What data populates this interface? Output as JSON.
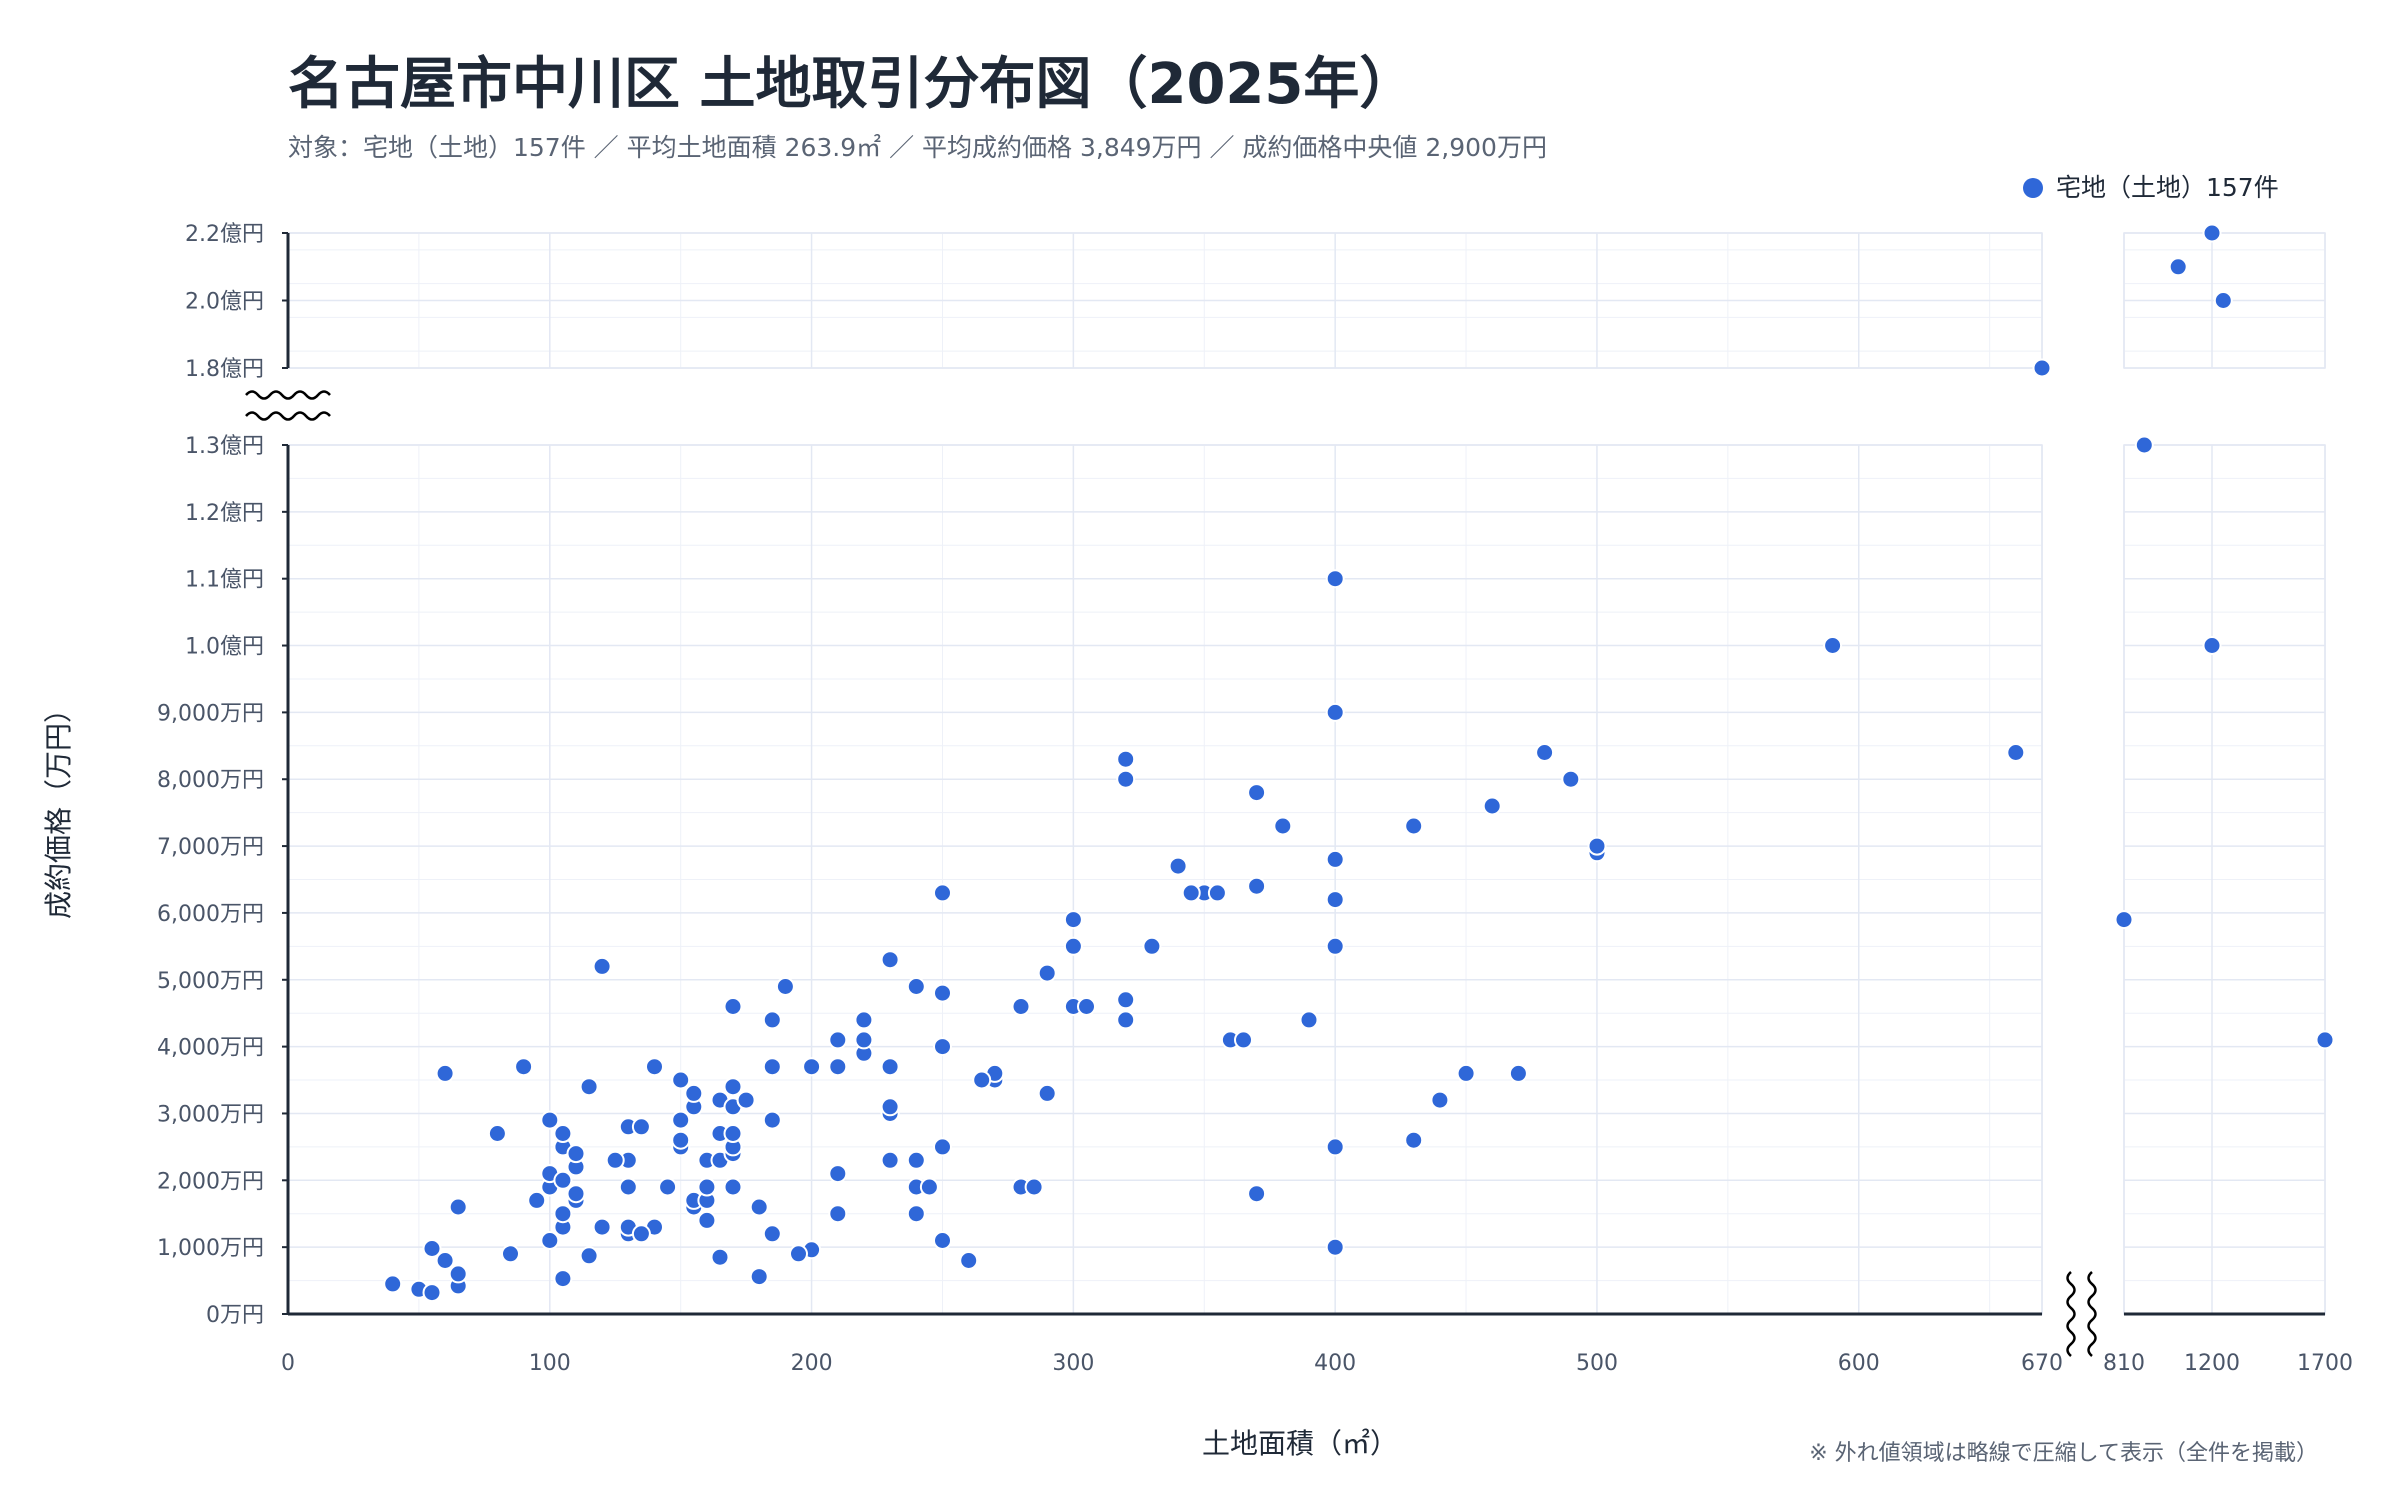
{
  "chart_data": {
    "type": "scatter",
    "title": "名古屋市中川区 土地取引分布図（2025年）",
    "subtitle": "対象：宅地（土地）157件 ／ 平均土地面積 263.9㎡ ／ 平均成約価格 3,849万円 ／ 成約価格中央値 2,900万円",
    "xlabel": "土地面積（㎡）",
    "ylabel": "成約価格（万円）",
    "note": "※ 外れ値領域は略線で圧縮して表示（全件を掲載）",
    "legend_position": "top-right",
    "grid": true,
    "x_axis_break": {
      "main_range": [
        0,
        670
      ],
      "outlier_range": [
        810,
        1700
      ]
    },
    "y_axis_break": {
      "main_range": [
        0,
        13000
      ],
      "outlier_range": [
        18000,
        22000
      ]
    },
    "x_ticks_main": [
      {
        "v": 0,
        "label": "0"
      },
      {
        "v": 100,
        "label": "100"
      },
      {
        "v": 200,
        "label": "200"
      },
      {
        "v": 300,
        "label": "300"
      },
      {
        "v": 400,
        "label": "400"
      },
      {
        "v": 500,
        "label": "500"
      },
      {
        "v": 600,
        "label": "600"
      },
      {
        "v": 670,
        "label": "670"
      }
    ],
    "x_ticks_outlier": [
      {
        "v": 810,
        "label": "810"
      },
      {
        "v": 1200,
        "label": "1200"
      },
      {
        "v": 1700,
        "label": "1700"
      }
    ],
    "y_ticks_main": [
      {
        "v": 0,
        "label": "0万円"
      },
      {
        "v": 1000,
        "label": "1,000万円"
      },
      {
        "v": 2000,
        "label": "2,000万円"
      },
      {
        "v": 3000,
        "label": "3,000万円"
      },
      {
        "v": 4000,
        "label": "4,000万円"
      },
      {
        "v": 5000,
        "label": "5,000万円"
      },
      {
        "v": 6000,
        "label": "6,000万円"
      },
      {
        "v": 7000,
        "label": "7,000万円"
      },
      {
        "v": 8000,
        "label": "8,000万円"
      },
      {
        "v": 9000,
        "label": "9,000万円"
      },
      {
        "v": 10000,
        "label": "1.0億円"
      },
      {
        "v": 11000,
        "label": "1.1億円"
      },
      {
        "v": 12000,
        "label": "1.2億円"
      },
      {
        "v": 13000,
        "label": "1.3億円"
      }
    ],
    "y_ticks_outlier": [
      {
        "v": 18000,
        "label": "1.8億円"
      },
      {
        "v": 20000,
        "label": "2.0億円"
      },
      {
        "v": 22000,
        "label": "2.2億円"
      }
    ],
    "series": [
      {
        "name": "宅地（土地）157件",
        "color": "#2f67d8",
        "points": [
          [
            40,
            450
          ],
          [
            50,
            370
          ],
          [
            55,
            320
          ],
          [
            55,
            980
          ],
          [
            60,
            800
          ],
          [
            60,
            3600
          ],
          [
            65,
            420
          ],
          [
            65,
            600
          ],
          [
            65,
            1600
          ],
          [
            80,
            2700
          ],
          [
            85,
            900
          ],
          [
            90,
            3700
          ],
          [
            95,
            1700
          ],
          [
            100,
            1100
          ],
          [
            100,
            1900
          ],
          [
            100,
            2100
          ],
          [
            100,
            2900
          ],
          [
            105,
            530
          ],
          [
            105,
            1300
          ],
          [
            105,
            1500
          ],
          [
            105,
            2000
          ],
          [
            105,
            2500
          ],
          [
            105,
            2700
          ],
          [
            110,
            1700
          ],
          [
            110,
            1800
          ],
          [
            110,
            2200
          ],
          [
            110,
            2400
          ],
          [
            115,
            870
          ],
          [
            115,
            3400
          ],
          [
            120,
            1300
          ],
          [
            120,
            5200
          ],
          [
            125,
            2300
          ],
          [
            130,
            1200
          ],
          [
            130,
            1300
          ],
          [
            130,
            1900
          ],
          [
            130,
            2300
          ],
          [
            130,
            2800
          ],
          [
            135,
            2800
          ],
          [
            140,
            1300
          ],
          [
            140,
            3700
          ],
          [
            145,
            1900
          ],
          [
            150,
            2500
          ],
          [
            150,
            2600
          ],
          [
            150,
            2900
          ],
          [
            150,
            3500
          ],
          [
            155,
            1600
          ],
          [
            155,
            1700
          ],
          [
            155,
            3100
          ],
          [
            155,
            3300
          ],
          [
            160,
            1400
          ],
          [
            160,
            1700
          ],
          [
            160,
            1900
          ],
          [
            160,
            2300
          ],
          [
            165,
            850
          ],
          [
            165,
            2300
          ],
          [
            165,
            2700
          ],
          [
            165,
            3200
          ],
          [
            170,
            1900
          ],
          [
            170,
            2400
          ],
          [
            170,
            2500
          ],
          [
            170,
            2700
          ],
          [
            170,
            3100
          ],
          [
            170,
            3400
          ],
          [
            170,
            4600
          ],
          [
            175,
            3200
          ],
          [
            180,
            560
          ],
          [
            180,
            1600
          ],
          [
            185,
            1200
          ],
          [
            185,
            2900
          ],
          [
            185,
            3700
          ],
          [
            185,
            4400
          ],
          [
            190,
            4900
          ],
          [
            195,
            900
          ],
          [
            200,
            960
          ],
          [
            200,
            3700
          ],
          [
            210,
            1500
          ],
          [
            210,
            2100
          ],
          [
            210,
            3700
          ],
          [
            210,
            4100
          ],
          [
            220,
            3900
          ],
          [
            220,
            4100
          ],
          [
            220,
            4400
          ],
          [
            230,
            2300
          ],
          [
            230,
            3000
          ],
          [
            230,
            3100
          ],
          [
            230,
            3700
          ],
          [
            230,
            5300
          ],
          [
            240,
            1500
          ],
          [
            240,
            1900
          ],
          [
            240,
            2300
          ],
          [
            240,
            4900
          ],
          [
            250,
            1100
          ],
          [
            250,
            2500
          ],
          [
            250,
            4000
          ],
          [
            250,
            4800
          ],
          [
            250,
            6300
          ],
          [
            260,
            800
          ],
          [
            270,
            3500
          ],
          [
            270,
            3600
          ],
          [
            280,
            1900
          ],
          [
            280,
            4600
          ],
          [
            290,
            3300
          ],
          [
            290,
            5100
          ],
          [
            300,
            4600
          ],
          [
            300,
            5500
          ],
          [
            300,
            5900
          ],
          [
            320,
            4400
          ],
          [
            320,
            4700
          ],
          [
            320,
            8000
          ],
          [
            320,
            8300
          ],
          [
            330,
            5500
          ],
          [
            340,
            6700
          ],
          [
            350,
            6300
          ],
          [
            360,
            4100
          ],
          [
            370,
            1800
          ],
          [
            370,
            6400
          ],
          [
            370,
            7800
          ],
          [
            380,
            7300
          ],
          [
            390,
            4400
          ],
          [
            400,
            1000
          ],
          [
            400,
            2500
          ],
          [
            400,
            5500
          ],
          [
            400,
            6200
          ],
          [
            400,
            6800
          ],
          [
            400,
            9000
          ],
          [
            400,
            11000
          ],
          [
            430,
            2600
          ],
          [
            430,
            7300
          ],
          [
            440,
            3200
          ],
          [
            450,
            3600
          ],
          [
            460,
            7600
          ],
          [
            470,
            3600
          ],
          [
            480,
            8400
          ],
          [
            490,
            8000
          ],
          [
            500,
            6900
          ],
          [
            500,
            7000
          ],
          [
            590,
            10000
          ],
          [
            660,
            8400
          ],
          [
            670,
            18000
          ],
          [
            810,
            5900
          ],
          [
            1200,
            10000
          ],
          [
            900,
            13000
          ],
          [
            1700,
            4100
          ],
          [
            1200,
            22000
          ],
          [
            1050,
            21000
          ],
          [
            1250,
            20000
          ],
          [
            125,
            2300
          ],
          [
            135,
            1200
          ],
          [
            175,
            3200
          ],
          [
            195,
            900
          ],
          [
            245,
            1900
          ],
          [
            265,
            3500
          ],
          [
            285,
            1900
          ],
          [
            305,
            4600
          ],
          [
            345,
            6300
          ],
          [
            355,
            6300
          ],
          [
            365,
            4100
          ]
        ]
      }
    ]
  }
}
